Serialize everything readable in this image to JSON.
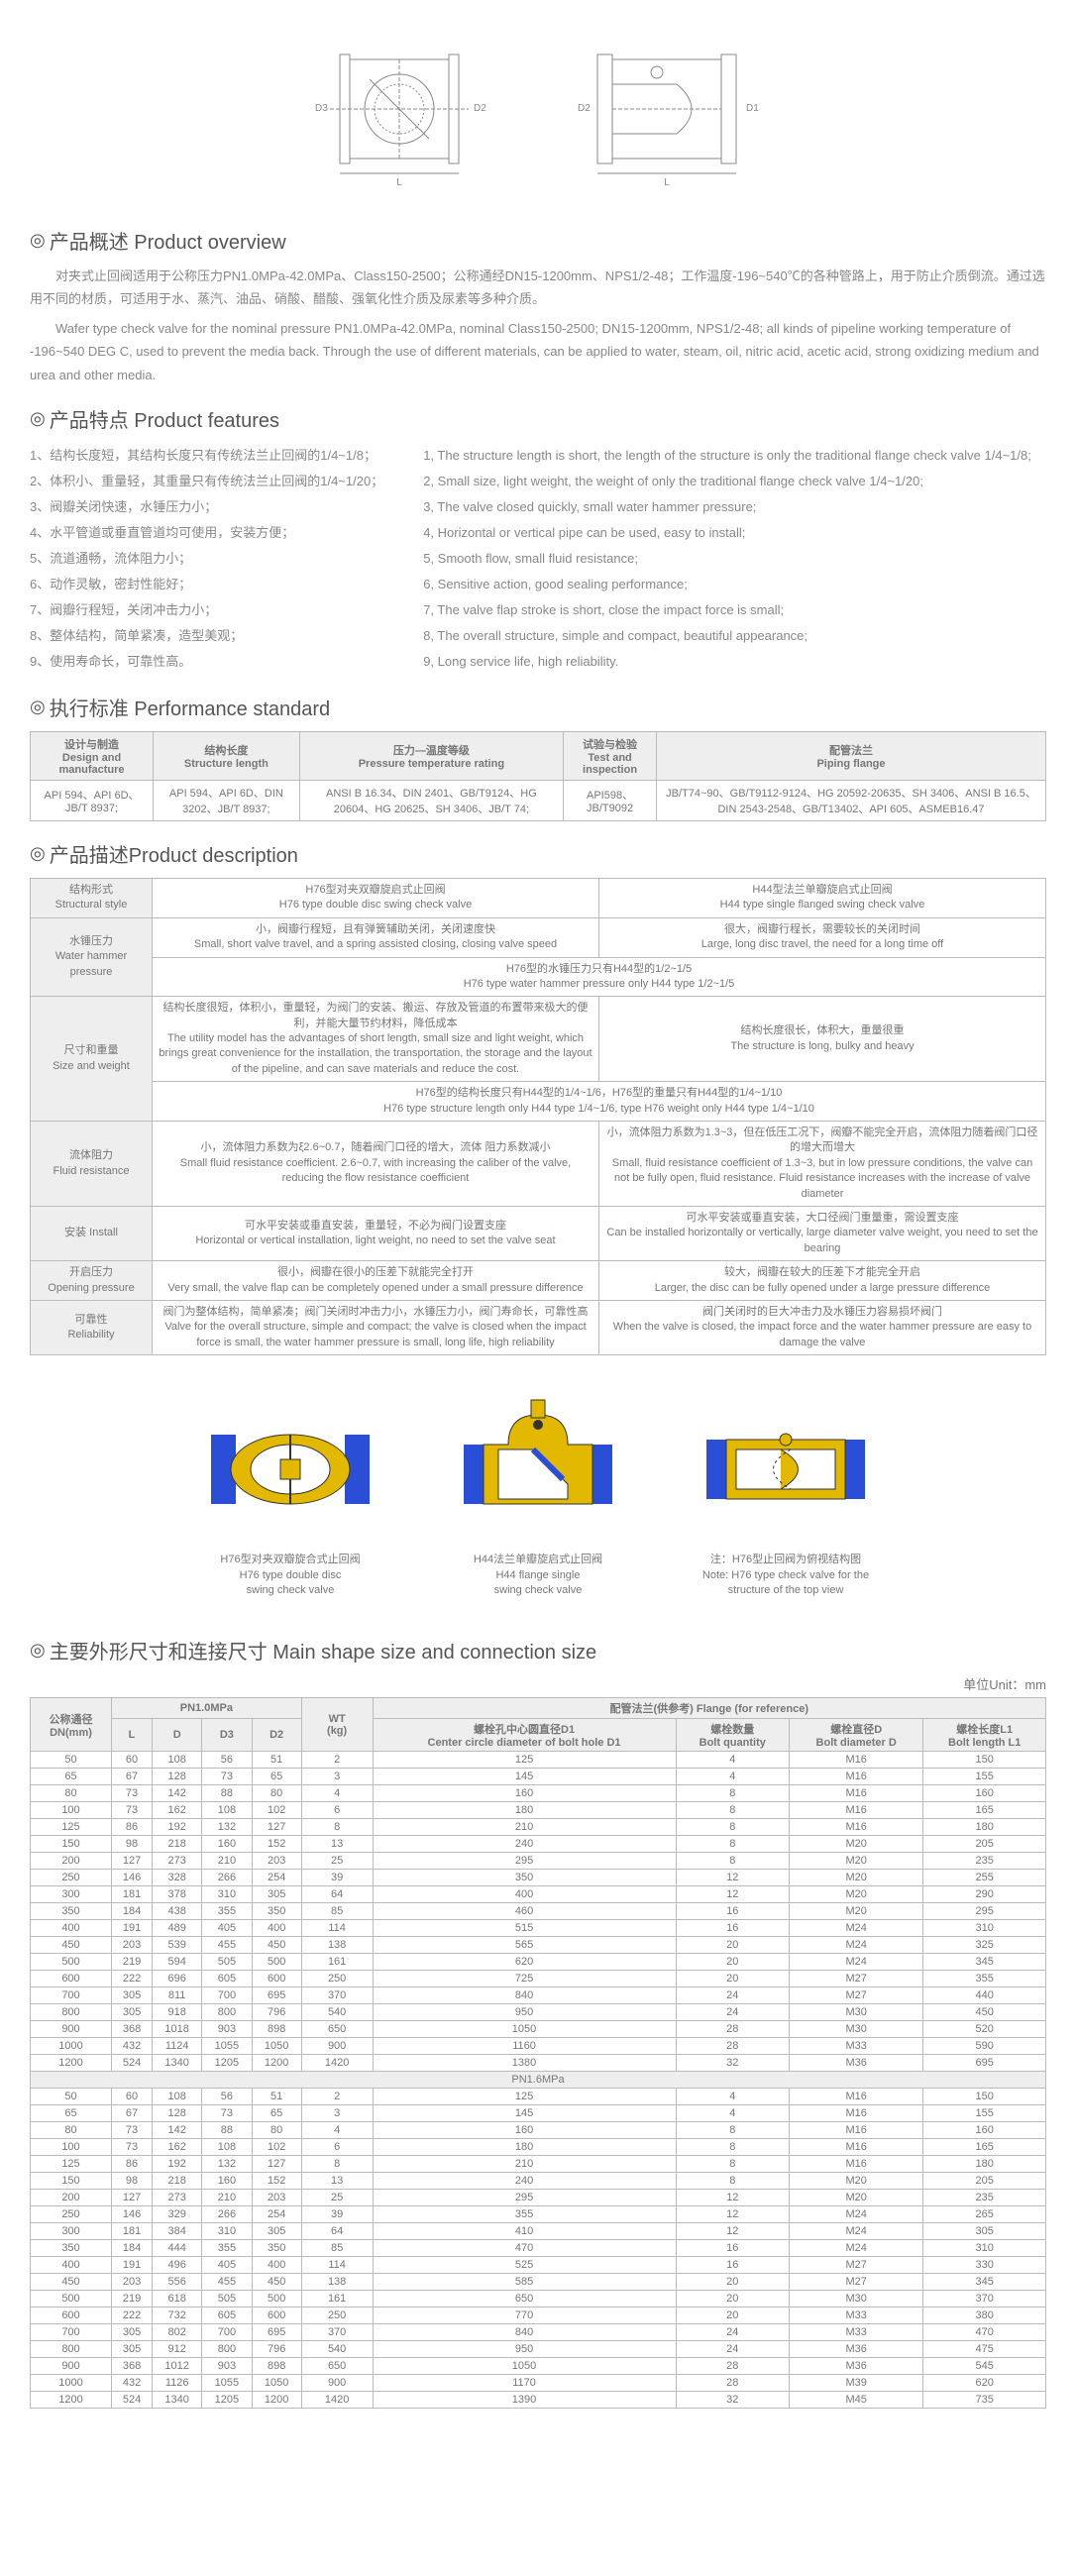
{
  "sections": {
    "overview": "产品概述 Product overview",
    "features": "产品特点 Product features",
    "standard": "执行标准 Performance standard",
    "description": "产品描述Product description",
    "size": "主要外形尺寸和连接尺寸 Main shape size and connection size"
  },
  "overview": {
    "p1": "对夹式止回阀适用于公称压力PN1.0MPa-42.0MPa、Class150-2500；公称通经DN15-1200mm、NPS1/2-48；工作温度-196~540℃的各种管路上，用于防止介质倒流。通过选用不同的材质，可适用于水、蒸汽、油品、硝酸、醋酸、强氧化性介质及尿素等多种介质。",
    "p2": "Wafer type check valve for the nominal pressure PN1.0MPa-42.0MPa, nominal Class150-2500; DN15-1200mm, NPS1/2-48; all kinds of pipeline working temperature of -196~540 DEG C, used to prevent the media back. Through the use of different materials, can be applied to water, steam, oil, nitric acid, acetic acid, strong oxidizing medium and urea and other media."
  },
  "features_cn": [
    "1、结构长度短，其结构长度只有传统法兰止回阀的1/4~1/8；",
    "2、体积小、重量轻，其重量只有传统法兰止回阀的1/4~1/20；",
    "3、阀瓣关闭快速，水锤压力小；",
    "4、水平管道或垂直管道均可使用，安装方便；",
    "5、流道通畅，流体阻力小；",
    "6、动作灵敏，密封性能好；",
    "7、阀瓣行程短，关闭冲击力小；",
    "8、整体结构，简单紧凑，造型美观；",
    "9、使用寿命长，可靠性高。"
  ],
  "features_en": [
    "1, The structure length is short, the length of the structure is only the traditional flange check valve 1/4~1/8;",
    "2, Small size, light weight, the weight of only the traditional flange check valve 1/4~1/20;",
    "3, The valve closed quickly, small water hammer pressure;",
    "4, Horizontal or vertical pipe can be used, easy to install;",
    "5, Smooth flow, small fluid resistance;",
    "6, Sensitive action, good sealing performance;",
    "7, The valve flap stroke is short, close the impact force is small;",
    "8, The overall structure, simple and compact, beautiful appearance;",
    "9, Long service life, high reliability."
  ],
  "std_headers": [
    "设计与制造\nDesign and manufacture",
    "结构长度\nStructure length",
    "压力—温度等级\nPressure temperature rating",
    "试验与检验\nTest and inspection",
    "配管法兰\nPiping flange"
  ],
  "std_row": [
    "API 594、API 6D、JB/T 8937;",
    "API 594、API 6D、DIN 3202、JB/T 8937;",
    "ANSI B 16.34、DIN 2401、GB/T9124、HG 20604、HG 20625、SH 3406、JB/T 74;",
    "API598、JB/T9092",
    "JB/T74~90、GB/T9112-9124、HG 20592-20635、SH 3406、ANSI B 16.5、DIN 2543-2548、GB/T13402、API 605、ASMEB16.47"
  ],
  "desc": {
    "r1l": "结构形式\nStructural style",
    "r1a": "H76型对夹双瓣旋启式止回阀\nH76 type double disc swing check valve",
    "r1b": "H44型法兰单瓣旋启式止回阀\nH44 type single flanged swing check valve",
    "r2l": "水锤压力\nWater hammer pressure",
    "r2a": "小，阀瓣行程短，且有弹簧辅助关闭，关闭速度快\nSmall, short valve travel, and a spring assisted closing, closing valve speed",
    "r2b": "很大，阀瓣行程长，需要较长的关闭时间\nLarge, long disc travel, the need for a long time off",
    "r2c": "H76型的水锤压力只有H44型的1/2~1/5\nH76 type water hammer pressure only H44 type 1/2~1/5",
    "r3l": "尺寸和重量\nSize and weight",
    "r3a": "结构长度很短，体积小，重量轻，为阀门的安装、搬运、存放及管道的布置带来极大的便利，并能大量节约材料，降低成本\nThe utility model has the advantages of short length, small size and light weight, which brings great convenience for the installation, the transportation, the storage and the layout of the pipeline, and can save materials and reduce the cost.",
    "r3b": "结构长度很长，体积大，重量很重\nThe structure is long, bulky and heavy",
    "r3c": "H76型的结构长度只有H44型的1/4~1/6，H76型的重量只有H44型的1/4~1/10\nH76 type structure length only H44 type 1/4~1/6, type H76 weight only H44 type 1/4~1/10",
    "r4l": "流体阻力\nFluid resistance",
    "r4a": "小，流体阻力系数为ξ2.6~0.7，随着阀门口径的增大，流体 阻力系数减小\nSmall fluid resistance coefficient. 2.6~0.7, with increasing the caliber of the valve, reducing the flow resistance coefficient",
    "r4b": "小，流体阻力系数为1.3~3，但在低压工况下，阀瓣不能完全开启，流体阻力随着阀门口径的增大而增大\nSmall, fluid resistance coefficient of 1.3~3, but in low pressure conditions, the valve can not be fully open, fluid resistance. Fluid resistance increases with the increase of valve diameter",
    "r5l": "安装 Install",
    "r5a": "可水平安装或垂直安装，重量轻，不必为阀门设置支座\nHorizontal or vertical installation, light weight, no need to set the valve seat",
    "r5b": "可水平安装或垂直安装，大口径阀门重量重，需设置支座\nCan be installed horizontally or vertically, large diameter valve weight, you need to set the bearing",
    "r6l": "开启压力\nOpening pressure",
    "r6a": "很小，阀瓣在很小的压差下就能完全打开\nVery small, the valve flap can be completely opened under a small pressure difference",
    "r6b": "较大，阀瓣在较大的压差下才能完全开启\nLarger, the disc can be fully opened under a large pressure difference",
    "r7l": "可靠性\nReliability",
    "r7a": "阀门为整体结构，简单紧凑；阀门关闭时冲击力小，水锤压力小，阀门寿命长，可靠性高\nValve for the overall structure, simple and compact; the valve is closed when the impact force is small, the water hammer pressure is small, long life, high reliability",
    "r7b": "阀门关闭时的巨大冲击力及水锤压力容易损坏阀门\nWhen the valve is closed, the impact force and the water hammer pressure are easy to damage the valve"
  },
  "prodcaps": {
    "c1": "H76型对夹双瓣旋合式止回阀\nH76 type double disc\nswing check valve",
    "c2": "H44法兰单瓣旋启式止回阀\nH44 flange single\nswing check valve",
    "c3": "注：H76型止回阀为俯视结构图\nNote: H76 type check valve for the\nstructure of the top view"
  },
  "unit": "单位Unit：mm",
  "size_headers": {
    "dn": "公称通径\nDN(mm)",
    "pn10": "PN1.0MPa",
    "wt": "WT\n(kg)",
    "flange": "配管法兰(供参考) Flange (for reference)",
    "L": "L",
    "D": "D",
    "D3": "D3",
    "D2": "D2",
    "d1": "螺栓孔中心圆直径D1\nCenter circle diameter of bolt hole D1",
    "n": "螺栓数量\nBolt quantity",
    "dd": "螺栓直径D\nBolt diameter D",
    "l1": "螺栓长度L1\nBolt length L1"
  },
  "pn10_rows": [
    [
      "50",
      "60",
      "108",
      "56",
      "51",
      "2",
      "125",
      "4",
      "M16",
      "150"
    ],
    [
      "65",
      "67",
      "128",
      "73",
      "65",
      "3",
      "145",
      "4",
      "M16",
      "155"
    ],
    [
      "80",
      "73",
      "142",
      "88",
      "80",
      "4",
      "160",
      "8",
      "M16",
      "160"
    ],
    [
      "100",
      "73",
      "162",
      "108",
      "102",
      "6",
      "180",
      "8",
      "M16",
      "165"
    ],
    [
      "125",
      "86",
      "192",
      "132",
      "127",
      "8",
      "210",
      "8",
      "M16",
      "180"
    ],
    [
      "150",
      "98",
      "218",
      "160",
      "152",
      "13",
      "240",
      "8",
      "M20",
      "205"
    ],
    [
      "200",
      "127",
      "273",
      "210",
      "203",
      "25",
      "295",
      "8",
      "M20",
      "235"
    ],
    [
      "250",
      "146",
      "328",
      "266",
      "254",
      "39",
      "350",
      "12",
      "M20",
      "255"
    ],
    [
      "300",
      "181",
      "378",
      "310",
      "305",
      "64",
      "400",
      "12",
      "M20",
      "290"
    ],
    [
      "350",
      "184",
      "438",
      "355",
      "350",
      "85",
      "460",
      "16",
      "M20",
      "295"
    ],
    [
      "400",
      "191",
      "489",
      "405",
      "400",
      "114",
      "515",
      "16",
      "M24",
      "310"
    ],
    [
      "450",
      "203",
      "539",
      "455",
      "450",
      "138",
      "565",
      "20",
      "M24",
      "325"
    ],
    [
      "500",
      "219",
      "594",
      "505",
      "500",
      "161",
      "620",
      "20",
      "M24",
      "345"
    ],
    [
      "600",
      "222",
      "696",
      "605",
      "600",
      "250",
      "725",
      "20",
      "M27",
      "355"
    ],
    [
      "700",
      "305",
      "811",
      "700",
      "695",
      "370",
      "840",
      "24",
      "M27",
      "440"
    ],
    [
      "800",
      "305",
      "918",
      "800",
      "796",
      "540",
      "950",
      "24",
      "M30",
      "450"
    ],
    [
      "900",
      "368",
      "1018",
      "903",
      "898",
      "650",
      "1050",
      "28",
      "M30",
      "520"
    ],
    [
      "1000",
      "432",
      "1124",
      "1055",
      "1050",
      "900",
      "1160",
      "28",
      "M33",
      "590"
    ],
    [
      "1200",
      "524",
      "1340",
      "1205",
      "1200",
      "1420",
      "1380",
      "32",
      "M36",
      "695"
    ]
  ],
  "pn16_label": "PN1.6MPa",
  "pn16_rows": [
    [
      "50",
      "60",
      "108",
      "56",
      "51",
      "2",
      "125",
      "4",
      "M16",
      "150"
    ],
    [
      "65",
      "67",
      "128",
      "73",
      "65",
      "3",
      "145",
      "4",
      "M16",
      "155"
    ],
    [
      "80",
      "73",
      "142",
      "88",
      "80",
      "4",
      "160",
      "8",
      "M16",
      "160"
    ],
    [
      "100",
      "73",
      "162",
      "108",
      "102",
      "6",
      "180",
      "8",
      "M16",
      "165"
    ],
    [
      "125",
      "86",
      "192",
      "132",
      "127",
      "8",
      "210",
      "8",
      "M16",
      "180"
    ],
    [
      "150",
      "98",
      "218",
      "160",
      "152",
      "13",
      "240",
      "8",
      "M20",
      "205"
    ],
    [
      "200",
      "127",
      "273",
      "210",
      "203",
      "25",
      "295",
      "12",
      "M20",
      "235"
    ],
    [
      "250",
      "146",
      "329",
      "266",
      "254",
      "39",
      "355",
      "12",
      "M24",
      "265"
    ],
    [
      "300",
      "181",
      "384",
      "310",
      "305",
      "64",
      "410",
      "12",
      "M24",
      "305"
    ],
    [
      "350",
      "184",
      "444",
      "355",
      "350",
      "85",
      "470",
      "16",
      "M24",
      "310"
    ],
    [
      "400",
      "191",
      "496",
      "405",
      "400",
      "114",
      "525",
      "16",
      "M27",
      "330"
    ],
    [
      "450",
      "203",
      "556",
      "455",
      "450",
      "138",
      "585",
      "20",
      "M27",
      "345"
    ],
    [
      "500",
      "219",
      "618",
      "505",
      "500",
      "161",
      "650",
      "20",
      "M30",
      "370"
    ],
    [
      "600",
      "222",
      "732",
      "605",
      "600",
      "250",
      "770",
      "20",
      "M33",
      "380"
    ],
    [
      "700",
      "305",
      "802",
      "700",
      "695",
      "370",
      "840",
      "24",
      "M33",
      "470"
    ],
    [
      "800",
      "305",
      "912",
      "800",
      "796",
      "540",
      "950",
      "24",
      "M36",
      "475"
    ],
    [
      "900",
      "368",
      "1012",
      "903",
      "898",
      "650",
      "1050",
      "28",
      "M36",
      "545"
    ],
    [
      "1000",
      "432",
      "1126",
      "1055",
      "1050",
      "900",
      "1170",
      "28",
      "M39",
      "620"
    ],
    [
      "1200",
      "524",
      "1340",
      "1205",
      "1200",
      "1420",
      "1390",
      "32",
      "M45",
      "735"
    ]
  ],
  "colors": {
    "blue": "#2a4fd6",
    "yellow": "#e2b800",
    "grey": "#888"
  }
}
